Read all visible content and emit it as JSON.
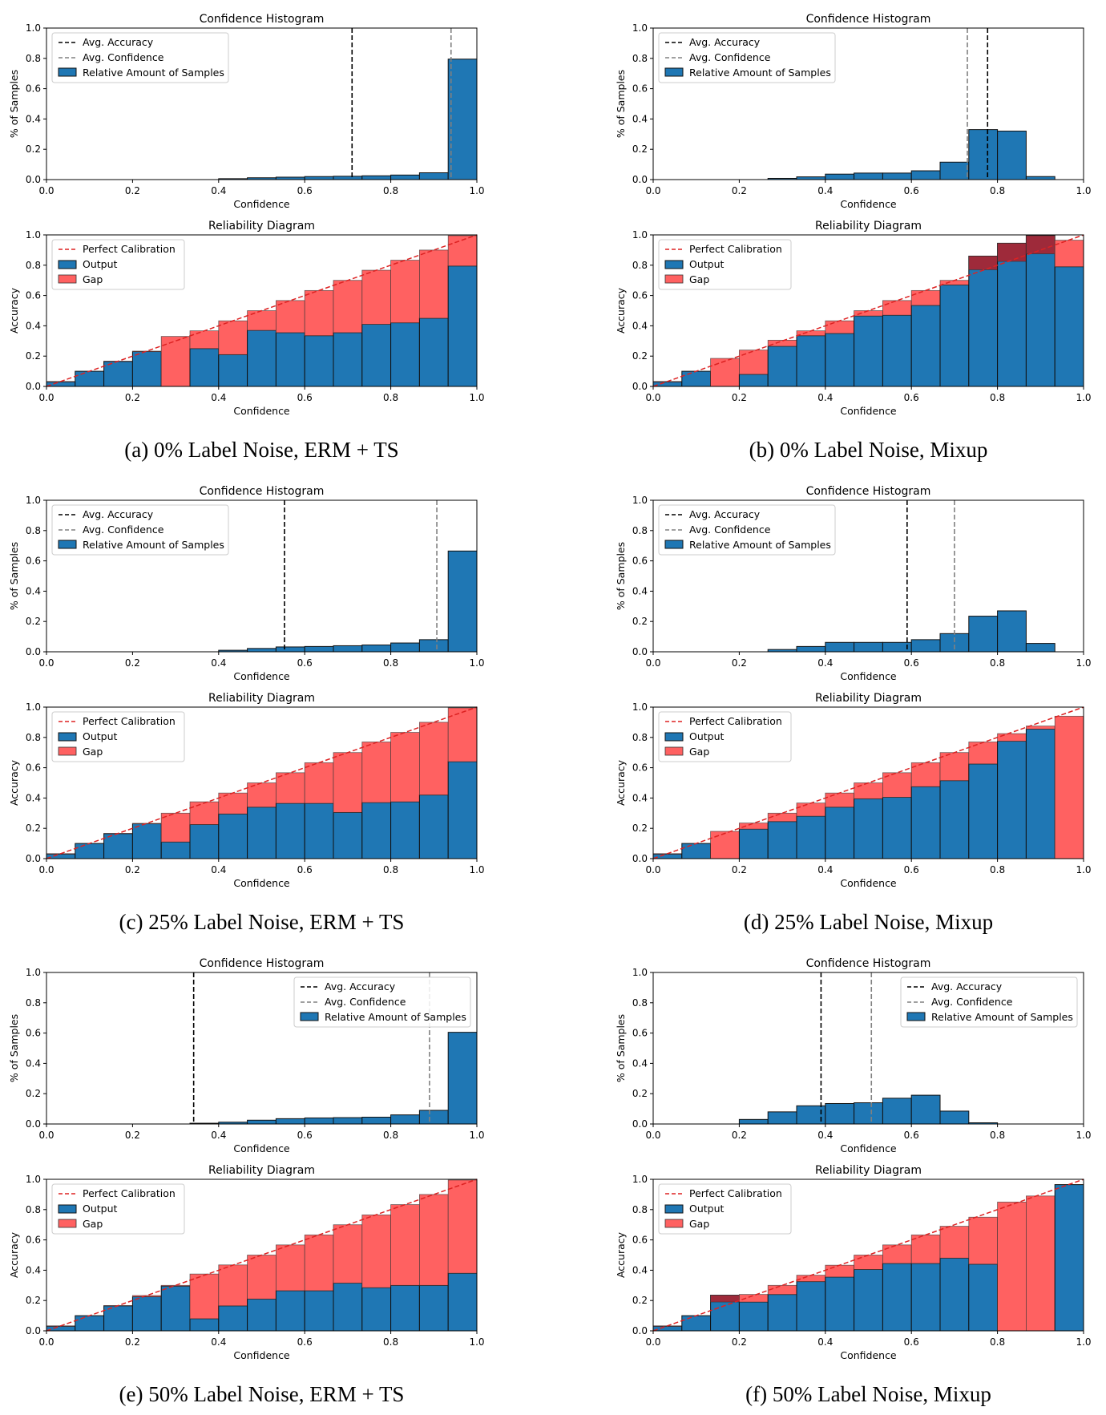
{
  "colors": {
    "output": "#1f77b4",
    "gap": "#ff6161",
    "overconf_gap": "#9e2a3a",
    "bar_edge": "#111111",
    "perfect": "#dd2222",
    "accuracy_line": "#000000",
    "confidence_line": "#808080"
  },
  "chart_data": [
    {
      "panel": "a",
      "caption": "(a) 0% Label Noise, ERM + TS",
      "bins": 15,
      "histogram": {
        "type": "bar",
        "title": "Confidence Histogram",
        "xlabel": "Confidence",
        "ylabel": "% of Samples",
        "xlim": [
          0,
          1
        ],
        "ylim": [
          0,
          1
        ],
        "xticks": [
          "0.0",
          "0.2",
          "0.4",
          "0.6",
          "0.8",
          "1.0"
        ],
        "yticks": [
          "0.0",
          "0.2",
          "0.4",
          "0.6",
          "0.8",
          "1.0"
        ],
        "legend_position": "upper-left",
        "legend": [
          "Avg. Accuracy",
          "Avg. Confidence",
          "Relative Amount of Samples"
        ],
        "avg_accuracy": 0.71,
        "avg_confidence": 0.94,
        "values": [
          0,
          0,
          0,
          0,
          0,
          0,
          0.006,
          0.012,
          0.016,
          0.02,
          0.022,
          0.025,
          0.03,
          0.045,
          0.795
        ]
      },
      "reliability": {
        "type": "bar",
        "title": "Reliability Diagram",
        "xlabel": "Confidence",
        "ylabel": "Accuracy",
        "xlim": [
          0,
          1
        ],
        "ylim": [
          0,
          1
        ],
        "xticks": [
          "0.0",
          "0.2",
          "0.4",
          "0.6",
          "0.8",
          "1.0"
        ],
        "yticks": [
          "0.0",
          "0.2",
          "0.4",
          "0.6",
          "0.8",
          "1.0"
        ],
        "legend_position": "upper-left",
        "legend": [
          "Perfect Calibration",
          "Output",
          "Gap"
        ],
        "accuracy": [
          0.03,
          0.1,
          0.165,
          0.23,
          0,
          0.25,
          0.21,
          0.37,
          0.355,
          0.335,
          0.355,
          0.41,
          0.42,
          0.45,
          0.795
        ],
        "confidence": [
          0.033,
          0.1,
          0.167,
          0.233,
          0.33,
          0.367,
          0.433,
          0.5,
          0.567,
          0.633,
          0.7,
          0.767,
          0.833,
          0.9,
          0.995
        ]
      }
    },
    {
      "panel": "b",
      "caption": "(b) 0% Label Noise, Mixup",
      "bins": 15,
      "histogram": {
        "type": "bar",
        "title": "Confidence Histogram",
        "xlabel": "Confidence",
        "ylabel": "% of Samples",
        "xlim": [
          0,
          1
        ],
        "ylim": [
          0,
          1
        ],
        "xticks": [
          "0.0",
          "0.2",
          "0.4",
          "0.6",
          "0.8",
          "1.0"
        ],
        "yticks": [
          "0.0",
          "0.2",
          "0.4",
          "0.6",
          "0.8",
          "1.0"
        ],
        "legend_position": "upper-left",
        "legend": [
          "Avg. Accuracy",
          "Avg. Confidence",
          "Relative Amount of Samples"
        ],
        "avg_accuracy": 0.777,
        "avg_confidence": 0.73,
        "values": [
          0,
          0,
          0,
          0,
          0.008,
          0.018,
          0.036,
          0.043,
          0.043,
          0.058,
          0.115,
          0.33,
          0.32,
          0.02,
          0
        ]
      },
      "reliability": {
        "type": "bar",
        "title": "Reliability Diagram",
        "xlabel": "Confidence",
        "ylabel": "Accuracy",
        "xlim": [
          0,
          1
        ],
        "ylim": [
          0,
          1
        ],
        "xticks": [
          "0.0",
          "0.2",
          "0.4",
          "0.6",
          "0.8",
          "1.0"
        ],
        "yticks": [
          "0.0",
          "0.2",
          "0.4",
          "0.6",
          "0.8",
          "1.0"
        ],
        "legend_position": "upper-left",
        "legend": [
          "Perfect Calibration",
          "Output",
          "Gap"
        ],
        "accuracy": [
          0.03,
          0.1,
          0,
          0.08,
          0.265,
          0.335,
          0.35,
          0.465,
          0.47,
          0.535,
          0.67,
          0.86,
          0.945,
          0.995,
          0.79
        ],
        "confidence": [
          0.033,
          0.1,
          0.185,
          0.24,
          0.305,
          0.367,
          0.433,
          0.5,
          0.567,
          0.633,
          0.7,
          0.77,
          0.825,
          0.875,
          0.965
        ]
      }
    },
    {
      "panel": "c",
      "caption": "(c) 25% Label Noise, ERM + TS",
      "bins": 15,
      "histogram": {
        "type": "bar",
        "title": "Confidence Histogram",
        "xlabel": "Confidence",
        "ylabel": "% of Samples",
        "xlim": [
          0,
          1
        ],
        "ylim": [
          0,
          1
        ],
        "xticks": [
          "0.0",
          "0.2",
          "0.4",
          "0.6",
          "0.8",
          "1.0"
        ],
        "yticks": [
          "0.0",
          "0.2",
          "0.4",
          "0.6",
          "0.8",
          "1.0"
        ],
        "legend_position": "upper-left",
        "legend": [
          "Avg. Accuracy",
          "Avg. Confidence",
          "Relative Amount of Samples"
        ],
        "avg_accuracy": 0.553,
        "avg_confidence": 0.907,
        "values": [
          0,
          0,
          0,
          0,
          0,
          0,
          0.01,
          0.022,
          0.032,
          0.035,
          0.04,
          0.045,
          0.058,
          0.08,
          0.665
        ]
      },
      "reliability": {
        "type": "bar",
        "title": "Reliability Diagram",
        "xlabel": "Confidence",
        "ylabel": "Accuracy",
        "xlim": [
          0,
          1
        ],
        "ylim": [
          0,
          1
        ],
        "xticks": [
          "0.0",
          "0.2",
          "0.4",
          "0.6",
          "0.8",
          "1.0"
        ],
        "yticks": [
          "0.0",
          "0.2",
          "0.4",
          "0.6",
          "0.8",
          "1.0"
        ],
        "legend_position": "upper-left",
        "legend": [
          "Perfect Calibration",
          "Output",
          "Gap"
        ],
        "accuracy": [
          0.03,
          0.1,
          0.165,
          0.23,
          0.11,
          0.225,
          0.295,
          0.34,
          0.365,
          0.365,
          0.305,
          0.37,
          0.375,
          0.42,
          0.64
        ],
        "confidence": [
          0.033,
          0.1,
          0.167,
          0.233,
          0.3,
          0.375,
          0.433,
          0.5,
          0.567,
          0.633,
          0.7,
          0.77,
          0.833,
          0.9,
          0.995
        ]
      }
    },
    {
      "panel": "d",
      "caption": "(d) 25% Label Noise, Mixup",
      "bins": 15,
      "histogram": {
        "type": "bar",
        "title": "Confidence Histogram",
        "xlabel": "Confidence",
        "ylabel": "% of Samples",
        "xlim": [
          0,
          1
        ],
        "ylim": [
          0,
          1
        ],
        "xticks": [
          "0.0",
          "0.2",
          "0.4",
          "0.6",
          "0.8",
          "1.0"
        ],
        "yticks": [
          "0.0",
          "0.2",
          "0.4",
          "0.6",
          "0.8",
          "1.0"
        ],
        "legend_position": "upper-left",
        "legend": [
          "Avg. Accuracy",
          "Avg. Confidence",
          "Relative Amount of Samples"
        ],
        "avg_accuracy": 0.59,
        "avg_confidence": 0.7,
        "values": [
          0,
          0,
          0,
          0,
          0.015,
          0.035,
          0.062,
          0.062,
          0.062,
          0.08,
          0.12,
          0.235,
          0.27,
          0.055,
          0
        ]
      },
      "reliability": {
        "type": "bar",
        "title": "Reliability Diagram",
        "xlabel": "Confidence",
        "ylabel": "Accuracy",
        "xlim": [
          0,
          1
        ],
        "ylim": [
          0,
          1
        ],
        "xticks": [
          "0.0",
          "0.2",
          "0.4",
          "0.6",
          "0.8",
          "1.0"
        ],
        "yticks": [
          "0.0",
          "0.2",
          "0.4",
          "0.6",
          "0.8",
          "1.0"
        ],
        "legend_position": "upper-left",
        "legend": [
          "Perfect Calibration",
          "Output",
          "Gap"
        ],
        "accuracy": [
          0.03,
          0.1,
          0,
          0.195,
          0.245,
          0.28,
          0.34,
          0.395,
          0.405,
          0.475,
          0.515,
          0.625,
          0.775,
          0.855,
          0
        ],
        "confidence": [
          0.033,
          0.1,
          0.18,
          0.235,
          0.3,
          0.367,
          0.433,
          0.5,
          0.567,
          0.633,
          0.7,
          0.77,
          0.825,
          0.875,
          0.94
        ]
      }
    },
    {
      "panel": "e",
      "caption": "(e) 50% Label Noise, ERM + TS",
      "bins": 15,
      "histogram": {
        "type": "bar",
        "title": "Confidence Histogram",
        "xlabel": "Confidence",
        "ylabel": "% of Samples",
        "xlim": [
          0,
          1
        ],
        "ylim": [
          0,
          1
        ],
        "xticks": [
          "0.0",
          "0.2",
          "0.4",
          "0.6",
          "0.8",
          "1.0"
        ],
        "yticks": [
          "0.0",
          "0.2",
          "0.4",
          "0.6",
          "0.8",
          "1.0"
        ],
        "legend_position": "upper-right",
        "legend": [
          "Avg. Accuracy",
          "Avg. Confidence",
          "Relative Amount of Samples"
        ],
        "avg_accuracy": 0.342,
        "avg_confidence": 0.89,
        "values": [
          0,
          0,
          0,
          0,
          0,
          0.005,
          0.012,
          0.025,
          0.035,
          0.04,
          0.042,
          0.045,
          0.06,
          0.09,
          0.605
        ]
      },
      "reliability": {
        "type": "bar",
        "title": "Reliability Diagram",
        "xlabel": "Confidence",
        "ylabel": "Accuracy",
        "xlim": [
          0,
          1
        ],
        "ylim": [
          0,
          1
        ],
        "xticks": [
          "0.0",
          "0.2",
          "0.4",
          "0.6",
          "0.8",
          "1.0"
        ],
        "yticks": [
          "0.0",
          "0.2",
          "0.4",
          "0.6",
          "0.8",
          "1.0"
        ],
        "legend_position": "upper-left",
        "legend": [
          "Perfect Calibration",
          "Output",
          "Gap"
        ],
        "accuracy": [
          0.03,
          0.1,
          0.165,
          0.225,
          0.295,
          0.08,
          0.165,
          0.21,
          0.265,
          0.265,
          0.315,
          0.285,
          0.3,
          0.3,
          0.38
        ],
        "confidence": [
          0.033,
          0.1,
          0.167,
          0.233,
          0.3,
          0.375,
          0.435,
          0.5,
          0.567,
          0.633,
          0.7,
          0.765,
          0.833,
          0.9,
          0.995
        ]
      }
    },
    {
      "panel": "f",
      "caption": "(f) 50% Label Noise, Mixup",
      "bins": 15,
      "histogram": {
        "type": "bar",
        "title": "Confidence Histogram",
        "xlabel": "Confidence",
        "ylabel": "% of Samples",
        "xlim": [
          0,
          1
        ],
        "ylim": [
          0,
          1
        ],
        "xticks": [
          "0.0",
          "0.2",
          "0.4",
          "0.6",
          "0.8",
          "1.0"
        ],
        "yticks": [
          "0.0",
          "0.2",
          "0.4",
          "0.6",
          "0.8",
          "1.0"
        ],
        "legend_position": "upper-right",
        "legend": [
          "Avg. Accuracy",
          "Avg. Confidence",
          "Relative Amount of Samples"
        ],
        "avg_accuracy": 0.39,
        "avg_confidence": 0.507,
        "values": [
          0,
          0,
          0,
          0.03,
          0.08,
          0.12,
          0.135,
          0.14,
          0.17,
          0.19,
          0.085,
          0.008,
          0,
          0,
          0
        ]
      },
      "reliability": {
        "type": "bar",
        "title": "Reliability Diagram",
        "xlabel": "Confidence",
        "ylabel": "Accuracy",
        "xlim": [
          0,
          1
        ],
        "ylim": [
          0,
          1
        ],
        "xticks": [
          "0.0",
          "0.2",
          "0.4",
          "0.6",
          "0.8",
          "1.0"
        ],
        "yticks": [
          "0.0",
          "0.2",
          "0.4",
          "0.6",
          "0.8",
          "1.0"
        ],
        "legend_position": "upper-left",
        "legend": [
          "Perfect Calibration",
          "Output",
          "Gap"
        ],
        "accuracy": [
          0.03,
          0.1,
          0.235,
          0.19,
          0.24,
          0.325,
          0.355,
          0.405,
          0.445,
          0.445,
          0.48,
          0.44,
          0,
          0,
          0.965
        ],
        "confidence": [
          0.033,
          0.1,
          0.19,
          0.24,
          0.3,
          0.367,
          0.433,
          0.5,
          0.567,
          0.633,
          0.69,
          0.75,
          0.85,
          0.89,
          0.965
        ]
      }
    }
  ]
}
